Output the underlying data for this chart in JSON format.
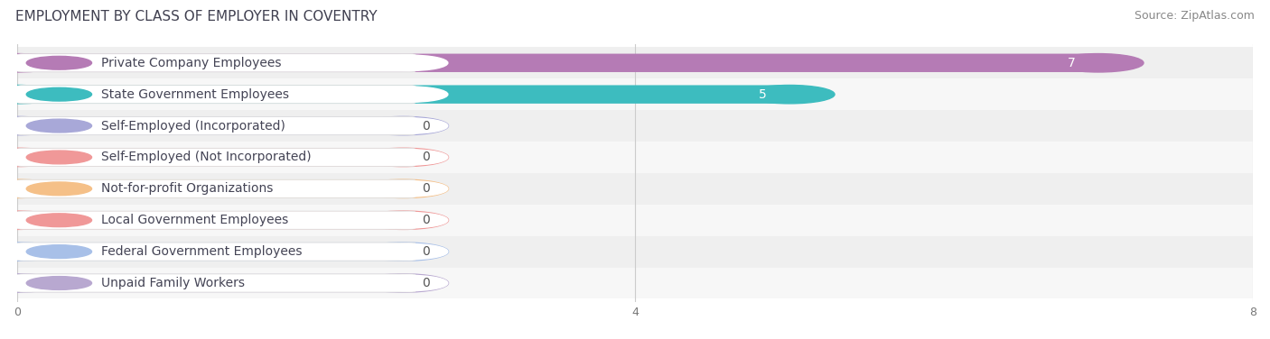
{
  "title": "EMPLOYMENT BY CLASS OF EMPLOYER IN COVENTRY",
  "source": "Source: ZipAtlas.com",
  "categories": [
    "Private Company Employees",
    "State Government Employees",
    "Self-Employed (Incorporated)",
    "Self-Employed (Not Incorporated)",
    "Not-for-profit Organizations",
    "Local Government Employees",
    "Federal Government Employees",
    "Unpaid Family Workers"
  ],
  "values": [
    7,
    5,
    0,
    0,
    0,
    0,
    0,
    0
  ],
  "bar_colors": [
    "#b57bb5",
    "#3dbcbf",
    "#a8a8d8",
    "#f09898",
    "#f5c088",
    "#f09898",
    "#a8c0e8",
    "#b8a8d0"
  ],
  "xlim": [
    0,
    8
  ],
  "xticks": [
    0,
    4,
    8
  ],
  "title_fontsize": 11,
  "source_fontsize": 9,
  "bar_label_fontsize": 10,
  "category_fontsize": 10,
  "zero_stub_value": 2.5
}
